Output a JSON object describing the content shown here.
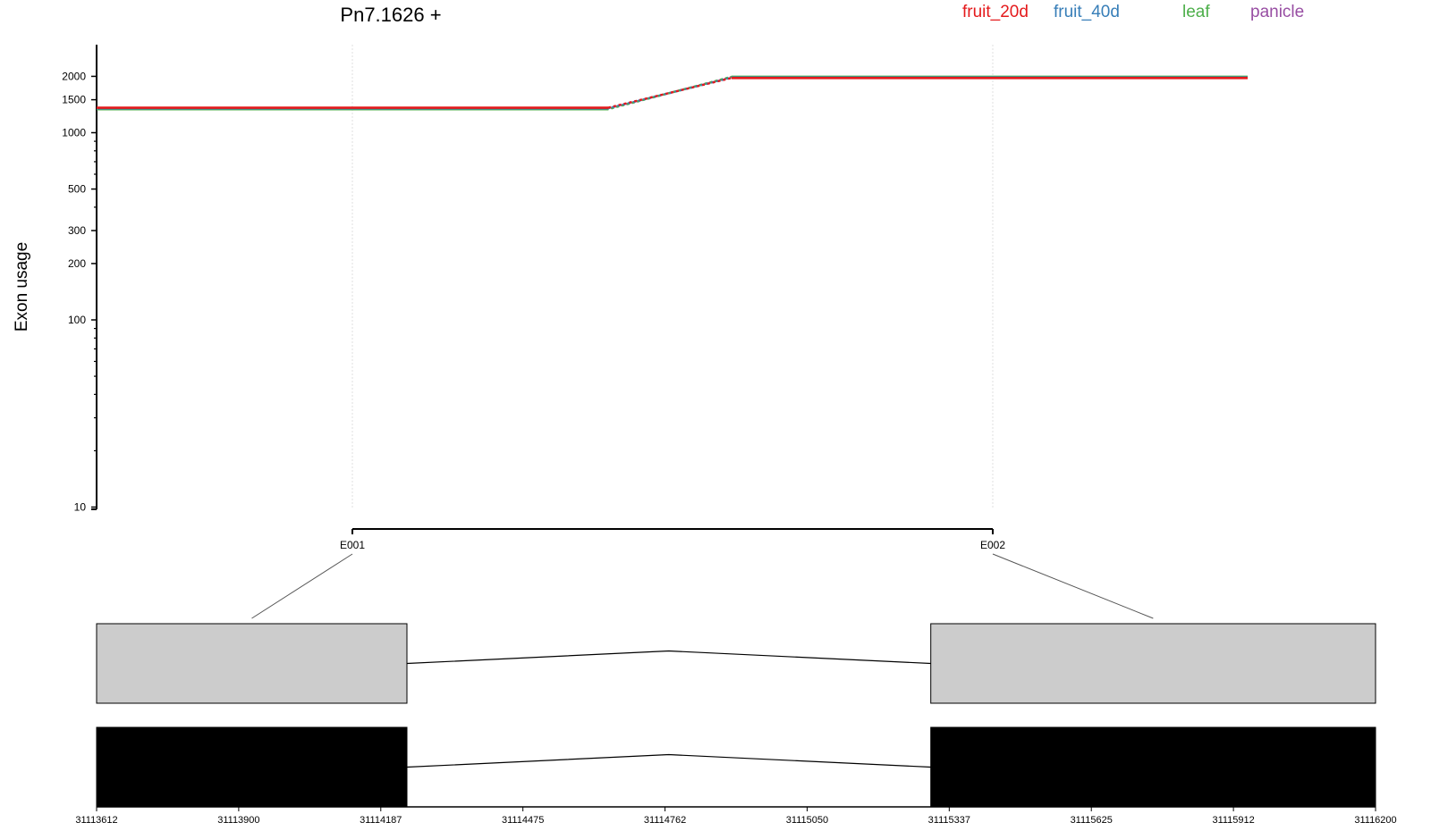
{
  "chart_data": {
    "type": "line",
    "title": "Pn7.1626 +",
    "ylabel": "Exon usage",
    "xlabel": "",
    "y_scale": "log",
    "yticks": [
      10,
      100,
      200,
      300,
      500,
      1000,
      1500,
      2000
    ],
    "categories": [
      "E001",
      "E002"
    ],
    "legend_position": "top-right",
    "series": [
      {
        "name": "fruit_20d",
        "color": "#E41A1C",
        "values": [
          1360,
          1960
        ]
      },
      {
        "name": "fruit_40d",
        "color": "#377EB8",
        "values": [
          1350,
          1970
        ]
      },
      {
        "name": "leaf",
        "color": "#4DAF4A",
        "values": [
          1335,
          1990
        ]
      },
      {
        "name": "panicle",
        "color": "#984EA3",
        "values": [
          1345,
          1980
        ]
      }
    ],
    "gene_model": {
      "coordinate_labels": [
        "31113612",
        "31113900",
        "31114187",
        "31114475",
        "31114762",
        "31115050",
        "31115337",
        "31115625",
        "31115912",
        "31116200"
      ],
      "start": 31113612,
      "end": 31116200,
      "exons": [
        {
          "label": "E001",
          "start": 31113612,
          "end": 31114240
        },
        {
          "label": "E002",
          "start": 31115300,
          "end": 31116200
        }
      ],
      "exon_fill_top": "#CCCCCC",
      "exon_fill_bottom": "#000000"
    }
  }
}
